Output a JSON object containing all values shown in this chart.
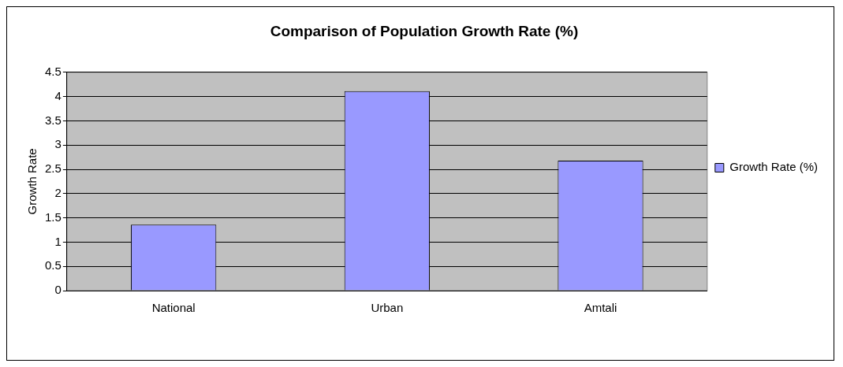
{
  "chart_data": {
    "type": "bar",
    "title": "Comparison of Population Growth Rate (%)",
    "ylabel": "Growth Rate",
    "categories": [
      "National",
      "Urban",
      "Amtali"
    ],
    "series": [
      {
        "name": "Growth Rate (%)",
        "color": "#9999ff",
        "values": [
          1.36,
          4.11,
          2.68
        ]
      }
    ],
    "ylim": [
      0,
      4.5
    ],
    "yticks": [
      0,
      0.5,
      1,
      1.5,
      2,
      2.5,
      3,
      3.5,
      4,
      4.5
    ],
    "grid": "y",
    "legend": "right"
  }
}
